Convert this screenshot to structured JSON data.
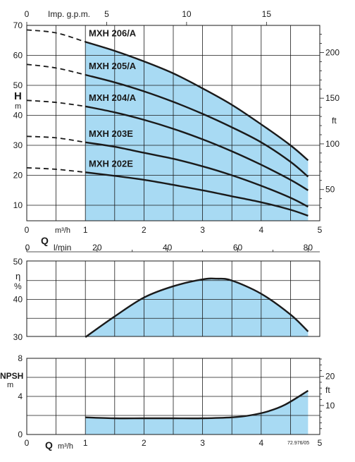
{
  "chart_data": [
    {
      "id": "head",
      "type": "line",
      "top_axis_label": "Imp. g.p.m.",
      "top_ticks": [
        "0",
        "5",
        "10",
        "15"
      ],
      "left_axis_label": "H",
      "left_unit": "m",
      "right_unit": "ft",
      "yticks_left": [
        "10",
        "20",
        "30",
        "40",
        "50",
        "60",
        "70"
      ],
      "yticks_right": [
        "50",
        "100",
        "150",
        "200"
      ],
      "xticks": [
        "0",
        "1",
        "2",
        "3",
        "4",
        "5"
      ],
      "x_unit_label": "m³/h",
      "xlim": [
        0,
        5
      ],
      "ylim": [
        5,
        70
      ],
      "operating_range_x": [
        1,
        4.8
      ],
      "series": [
        {
          "name": "MXH 206/A",
          "points": [
            [
              0,
              68.5
            ],
            [
              0.5,
              67.5
            ],
            [
              1,
              64.5
            ],
            [
              1.5,
              61.5
            ],
            [
              2,
              58
            ],
            [
              2.5,
              54
            ],
            [
              3,
              49
            ],
            [
              3.5,
              43.5
            ],
            [
              4,
              37
            ],
            [
              4.5,
              30
            ],
            [
              4.8,
              25
            ]
          ]
        },
        {
          "name": "MXH 205/A",
          "points": [
            [
              0,
              57
            ],
            [
              0.5,
              55.8
            ],
            [
              1,
              53.5
            ],
            [
              1.5,
              51
            ],
            [
              2,
              48
            ],
            [
              2.5,
              44.5
            ],
            [
              3,
              40.5
            ],
            [
              3.5,
              36
            ],
            [
              4,
              31
            ],
            [
              4.5,
              24.5
            ],
            [
              4.8,
              19.5
            ]
          ]
        },
        {
          "name": "MXH 204/A",
          "points": [
            [
              0,
              45
            ],
            [
              0.5,
              44.3
            ],
            [
              1,
              43
            ],
            [
              1.5,
              41
            ],
            [
              2,
              38.5
            ],
            [
              2.5,
              35.5
            ],
            [
              3,
              32
            ],
            [
              3.5,
              28
            ],
            [
              4,
              23.5
            ],
            [
              4.5,
              18.5
            ],
            [
              4.8,
              15
            ]
          ]
        },
        {
          "name": "MXH 203E",
          "points": [
            [
              0,
              33
            ],
            [
              0.5,
              32.5
            ],
            [
              1,
              31
            ],
            [
              1.5,
              29.5
            ],
            [
              2,
              27.5
            ],
            [
              2.5,
              25.5
            ],
            [
              3,
              23
            ],
            [
              3.5,
              20
            ],
            [
              4,
              16.5
            ],
            [
              4.5,
              12.5
            ],
            [
              4.8,
              9.5
            ]
          ]
        },
        {
          "name": "MXH 202E",
          "points": [
            [
              0,
              22.5
            ],
            [
              0.5,
              22
            ],
            [
              1,
              21
            ],
            [
              1.5,
              19.8
            ],
            [
              2,
              18.5
            ],
            [
              2.5,
              16.8
            ],
            [
              3,
              15
            ],
            [
              3.5,
              13
            ],
            [
              4,
              11
            ],
            [
              4.5,
              8.5
            ],
            [
              4.8,
              6.5
            ]
          ]
        }
      ]
    },
    {
      "id": "efficiency",
      "type": "area",
      "q_label": "Q",
      "lmin_label": "l/min",
      "lmin_ticks": [
        "0",
        "20",
        "40",
        "60",
        "80"
      ],
      "ylabel": "η",
      "yunit": "%",
      "yticks": [
        "30",
        "40",
        "50"
      ],
      "ylim": [
        30,
        50
      ],
      "xlim": [
        0,
        5
      ],
      "points": [
        [
          1,
          30
        ],
        [
          1.5,
          35.5
        ],
        [
          2,
          40.5
        ],
        [
          2.5,
          43.5
        ],
        [
          3,
          45.3
        ],
        [
          3.25,
          45.5
        ],
        [
          3.5,
          45
        ],
        [
          4,
          41.5
        ],
        [
          4.5,
          36
        ],
        [
          4.8,
          31.5
        ]
      ]
    },
    {
      "id": "npsh",
      "type": "area",
      "ylabel": "NPSH",
      "yunit": "m",
      "right_unit": "ft",
      "yticks": [
        "0",
        "4",
        "8"
      ],
      "yticks_right": [
        "10",
        "20"
      ],
      "ylim": [
        0,
        8
      ],
      "xlim": [
        0,
        5
      ],
      "xlabel": "Q",
      "x_unit_label": "m³/h",
      "xticks": [
        "0",
        "1",
        "2",
        "3",
        "4",
        "5"
      ],
      "code": "72.976/05",
      "points": [
        [
          1,
          1.8
        ],
        [
          1.5,
          1.7
        ],
        [
          2,
          1.7
        ],
        [
          2.5,
          1.7
        ],
        [
          3,
          1.7
        ],
        [
          3.5,
          1.8
        ],
        [
          3.8,
          2.0
        ],
        [
          4.1,
          2.4
        ],
        [
          4.4,
          3.1
        ],
        [
          4.8,
          4.6
        ]
      ]
    }
  ],
  "colors": {
    "fill": "#a8daf3",
    "line": "#1a1a1a"
  }
}
